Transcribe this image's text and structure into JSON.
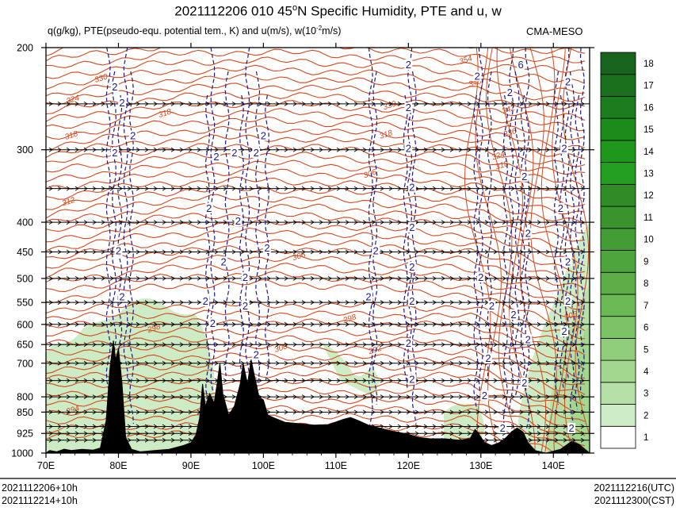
{
  "title_main": "2021112206 010 45",
  "title_deg": "o",
  "title_rest": "N Specific Humidity, PTE and u, w",
  "subtitle": "q(g/kg), PTE(pseudo-equ. potential tem., K) and u(m/s), w(10",
  "subtitle_sup": "-2",
  "subtitle_end": "m/s)",
  "agency": "CMA-MESO",
  "footer": {
    "init_local": "2021112206+10h",
    "valid_local": "2021112214+10h",
    "valid_utc": "2021112216(UTC)",
    "valid_cst": "2021112300(CST)"
  },
  "colors": {
    "pte_contour": "#d2491c",
    "w_contour": "#1a1a8c",
    "terrain": "#000000",
    "wind_arrow": "#000000"
  },
  "chart_data": {
    "type": "vertical-cross-section",
    "x_axis": {
      "range": [
        70,
        145
      ],
      "ticks": [
        70,
        80,
        90,
        100,
        110,
        120,
        130,
        140
      ],
      "tick_labels": [
        "70E",
        "80E",
        "90E",
        "100E",
        "110E",
        "120E",
        "130E",
        "140E"
      ]
    },
    "y_axis": {
      "unit": "hPa",
      "range": [
        1000,
        200
      ],
      "ticks": [
        200,
        300,
        400,
        450,
        500,
        550,
        600,
        650,
        700,
        800,
        850,
        925,
        1000
      ],
      "tick_labels": [
        "200",
        "300",
        "400",
        "450",
        "500",
        "550",
        "600",
        "650",
        "700",
        "800",
        "850",
        "925",
        "1000"
      ]
    },
    "wind_levels_hPa": [
      250,
      300,
      350,
      400,
      450,
      500,
      550,
      600,
      650,
      700,
      750,
      800,
      850,
      900,
      925,
      950
    ],
    "pte_contour_labels": [
      {
        "text": "354",
        "lon": 128.0,
        "p": 212
      },
      {
        "text": "348",
        "lon": 129.3,
        "p": 232
      },
      {
        "text": "342",
        "lon": 133.9,
        "p": 258
      },
      {
        "text": "336",
        "lon": 134.1,
        "p": 283
      },
      {
        "text": "330",
        "lon": 77.7,
        "p": 228
      },
      {
        "text": "330",
        "lon": 117.5,
        "p": 254
      },
      {
        "text": "324",
        "lon": 73.8,
        "p": 248
      },
      {
        "text": "324",
        "lon": 132.5,
        "p": 310
      },
      {
        "text": "318",
        "lon": 73.6,
        "p": 286
      },
      {
        "text": "318",
        "lon": 86.5,
        "p": 262
      },
      {
        "text": "318",
        "lon": 133.0,
        "p": 322
      },
      {
        "text": "318",
        "lon": 117.0,
        "p": 285
      },
      {
        "text": "312",
        "lon": 73.2,
        "p": 372
      },
      {
        "text": "306",
        "lon": 114.8,
        "p": 333
      },
      {
        "text": "306",
        "lon": 105.0,
        "p": 462
      },
      {
        "text": "306",
        "lon": 142.5,
        "p": 585
      },
      {
        "text": "300",
        "lon": 102.5,
        "p": 665
      },
      {
        "text": "298",
        "lon": 112.0,
        "p": 592
      },
      {
        "text": "298",
        "lon": 85.0,
        "p": 615
      },
      {
        "text": "294",
        "lon": 73.8,
        "p": 850
      },
      {
        "text": "294",
        "lon": 93.5,
        "p": 855
      },
      {
        "text": "291",
        "lon": 98.5,
        "p": 760
      },
      {
        "text": "292",
        "lon": 115.5,
        "p": 670
      }
    ],
    "w_contour_labels": [
      {
        "text": "2",
        "lon": 79.5,
        "p": 235
      },
      {
        "text": "2",
        "lon": 79.5,
        "p": 305
      },
      {
        "text": "2",
        "lon": 80.0,
        "p": 450
      },
      {
        "text": "2",
        "lon": 80.5,
        "p": 540
      },
      {
        "text": "2",
        "lon": 82.0,
        "p": 285
      },
      {
        "text": "2",
        "lon": 80.5,
        "p": 250
      },
      {
        "text": "2",
        "lon": 93.5,
        "p": 310
      },
      {
        "text": "2",
        "lon": 92.5,
        "p": 380
      },
      {
        "text": "2",
        "lon": 94.5,
        "p": 470
      },
      {
        "text": "2",
        "lon": 92.0,
        "p": 550
      },
      {
        "text": "2",
        "lon": 93.0,
        "p": 600
      },
      {
        "text": "2",
        "lon": 96.0,
        "p": 305
      },
      {
        "text": "2",
        "lon": 96.5,
        "p": 400
      },
      {
        "text": "2",
        "lon": 97.5,
        "p": 500
      },
      {
        "text": "2",
        "lon": 97.5,
        "p": 560
      },
      {
        "text": "2",
        "lon": 99.0,
        "p": 305
      },
      {
        "text": "2",
        "lon": 100.0,
        "p": 285
      },
      {
        "text": "2",
        "lon": 100.5,
        "p": 445
      },
      {
        "text": "2",
        "lon": 99.0,
        "p": 680
      },
      {
        "text": "2",
        "lon": 115.5,
        "p": 450
      },
      {
        "text": "2",
        "lon": 114.5,
        "p": 540
      },
      {
        "text": "2",
        "lon": 120.0,
        "p": 215
      },
      {
        "text": "2",
        "lon": 120.0,
        "p": 255
      },
      {
        "text": "2",
        "lon": 120.0,
        "p": 300
      },
      {
        "text": "2",
        "lon": 120.5,
        "p": 350
      },
      {
        "text": "2",
        "lon": 120.5,
        "p": 410
      },
      {
        "text": "2",
        "lon": 120.5,
        "p": 480
      },
      {
        "text": "2",
        "lon": 120.5,
        "p": 550
      },
      {
        "text": "2",
        "lon": 120.0,
        "p": 650
      },
      {
        "text": "2",
        "lon": 120.5,
        "p": 750
      },
      {
        "text": "2",
        "lon": 129.5,
        "p": 225
      },
      {
        "text": "2",
        "lon": 130.0,
        "p": 500
      },
      {
        "text": "2",
        "lon": 131.5,
        "p": 560
      },
      {
        "text": "2",
        "lon": 131.0,
        "p": 690
      },
      {
        "text": "2",
        "lon": 130.5,
        "p": 800
      },
      {
        "text": "2",
        "lon": 133.0,
        "p": 910
      },
      {
        "text": "2",
        "lon": 134.0,
        "p": 240
      },
      {
        "text": "2",
        "lon": 136.0,
        "p": 335
      },
      {
        "text": "2",
        "lon": 136.5,
        "p": 420
      },
      {
        "text": "2",
        "lon": 134.5,
        "p": 580
      },
      {
        "text": "2",
        "lon": 136.5,
        "p": 640
      },
      {
        "text": "2",
        "lon": 136.0,
        "p": 760
      },
      {
        "text": "2",
        "lon": 142.0,
        "p": 230
      },
      {
        "text": "2",
        "lon": 141.5,
        "p": 300
      },
      {
        "text": "2",
        "lon": 141.0,
        "p": 380
      },
      {
        "text": "2",
        "lon": 142.0,
        "p": 470
      },
      {
        "text": "2",
        "lon": 142.0,
        "p": 550
      },
      {
        "text": "2",
        "lon": 141.5,
        "p": 620
      },
      {
        "text": "2",
        "lon": 142.5,
        "p": 910
      },
      {
        "text": "6",
        "lon": 135.5,
        "p": 215
      }
    ],
    "w_contour_columns_lon": [
      78.6,
      79.4,
      80.2,
      81.0,
      81.8,
      92.3,
      93.0,
      95.0,
      97.0,
      97.8,
      99.2,
      100.5,
      114.8,
      115.4,
      119.6,
      120.2,
      120.8,
      129.3,
      130.0,
      131.2,
      133.4,
      134.2,
      135.0,
      135.8,
      136.4,
      140.4,
      141.2,
      141.9,
      142.6,
      143.3,
      144.0
    ],
    "humidity_shading": {
      "legend_levels": [
        1,
        2,
        3,
        4,
        5,
        6,
        7,
        8,
        9,
        10,
        11,
        12,
        13,
        14,
        15,
        16,
        17,
        18
      ],
      "legend_colors": [
        "#ffffff",
        "#cdebc4",
        "#b7e0a8",
        "#a3d790",
        "#8fcd7a",
        "#7cc266",
        "#6bb955",
        "#5caf48",
        "#4fa53d",
        "#449c35",
        "#3a942e",
        "#2f8c27",
        "#249f1f",
        "#1f961c",
        "#1d8a1c",
        "#1b7d1d",
        "#1a701d",
        "#18641c"
      ]
    },
    "terrain_profile": [
      [
        70.0,
        1000
      ],
      [
        70.5,
        990
      ],
      [
        71.5,
        995
      ],
      [
        72.5,
        985
      ],
      [
        73.5,
        990
      ],
      [
        75.0,
        985
      ],
      [
        76.5,
        988
      ],
      [
        77.5,
        980
      ],
      [
        78.3,
        880
      ],
      [
        78.8,
        720
      ],
      [
        79.3,
        640
      ],
      [
        79.6,
        690
      ],
      [
        80.0,
        660
      ],
      [
        80.5,
        760
      ],
      [
        81.0,
        940
      ],
      [
        81.8,
        985
      ],
      [
        83.0,
        995
      ],
      [
        85.0,
        990
      ],
      [
        87.0,
        985
      ],
      [
        89.0,
        970
      ],
      [
        90.0,
        960
      ],
      [
        90.7,
        930
      ],
      [
        91.2,
        870
      ],
      [
        91.6,
        760
      ],
      [
        92.0,
        830
      ],
      [
        92.6,
        790
      ],
      [
        93.2,
        820
      ],
      [
        93.6,
        760
      ],
      [
        94.0,
        700
      ],
      [
        94.4,
        790
      ],
      [
        95.2,
        860
      ],
      [
        96.0,
        830
      ],
      [
        96.8,
        760
      ],
      [
        97.2,
        700
      ],
      [
        97.8,
        760
      ],
      [
        98.3,
        690
      ],
      [
        98.8,
        740
      ],
      [
        99.4,
        800
      ],
      [
        100.0,
        810
      ],
      [
        100.6,
        860
      ],
      [
        101.5,
        870
      ],
      [
        103.0,
        885
      ],
      [
        105.0,
        890
      ],
      [
        107.0,
        895
      ],
      [
        109.0,
        893
      ],
      [
        111.0,
        875
      ],
      [
        112.0,
        868
      ],
      [
        113.0,
        878
      ],
      [
        114.5,
        895
      ],
      [
        116.0,
        905
      ],
      [
        118.0,
        918
      ],
      [
        120.0,
        928
      ],
      [
        121.5,
        940
      ],
      [
        123.0,
        945
      ],
      [
        125.0,
        945
      ],
      [
        127.0,
        950
      ],
      [
        128.5,
        945
      ],
      [
        129.2,
        910
      ],
      [
        129.8,
        930
      ],
      [
        130.5,
        960
      ],
      [
        131.5,
        970
      ],
      [
        132.5,
        960
      ],
      [
        133.5,
        940
      ],
      [
        134.2,
        920
      ],
      [
        135.0,
        905
      ],
      [
        135.8,
        920
      ],
      [
        136.5,
        960
      ],
      [
        137.5,
        990
      ],
      [
        139.0,
        1000
      ],
      [
        141.0,
        985
      ],
      [
        142.5,
        955
      ],
      [
        143.5,
        965
      ],
      [
        145.0,
        1000
      ]
    ]
  }
}
